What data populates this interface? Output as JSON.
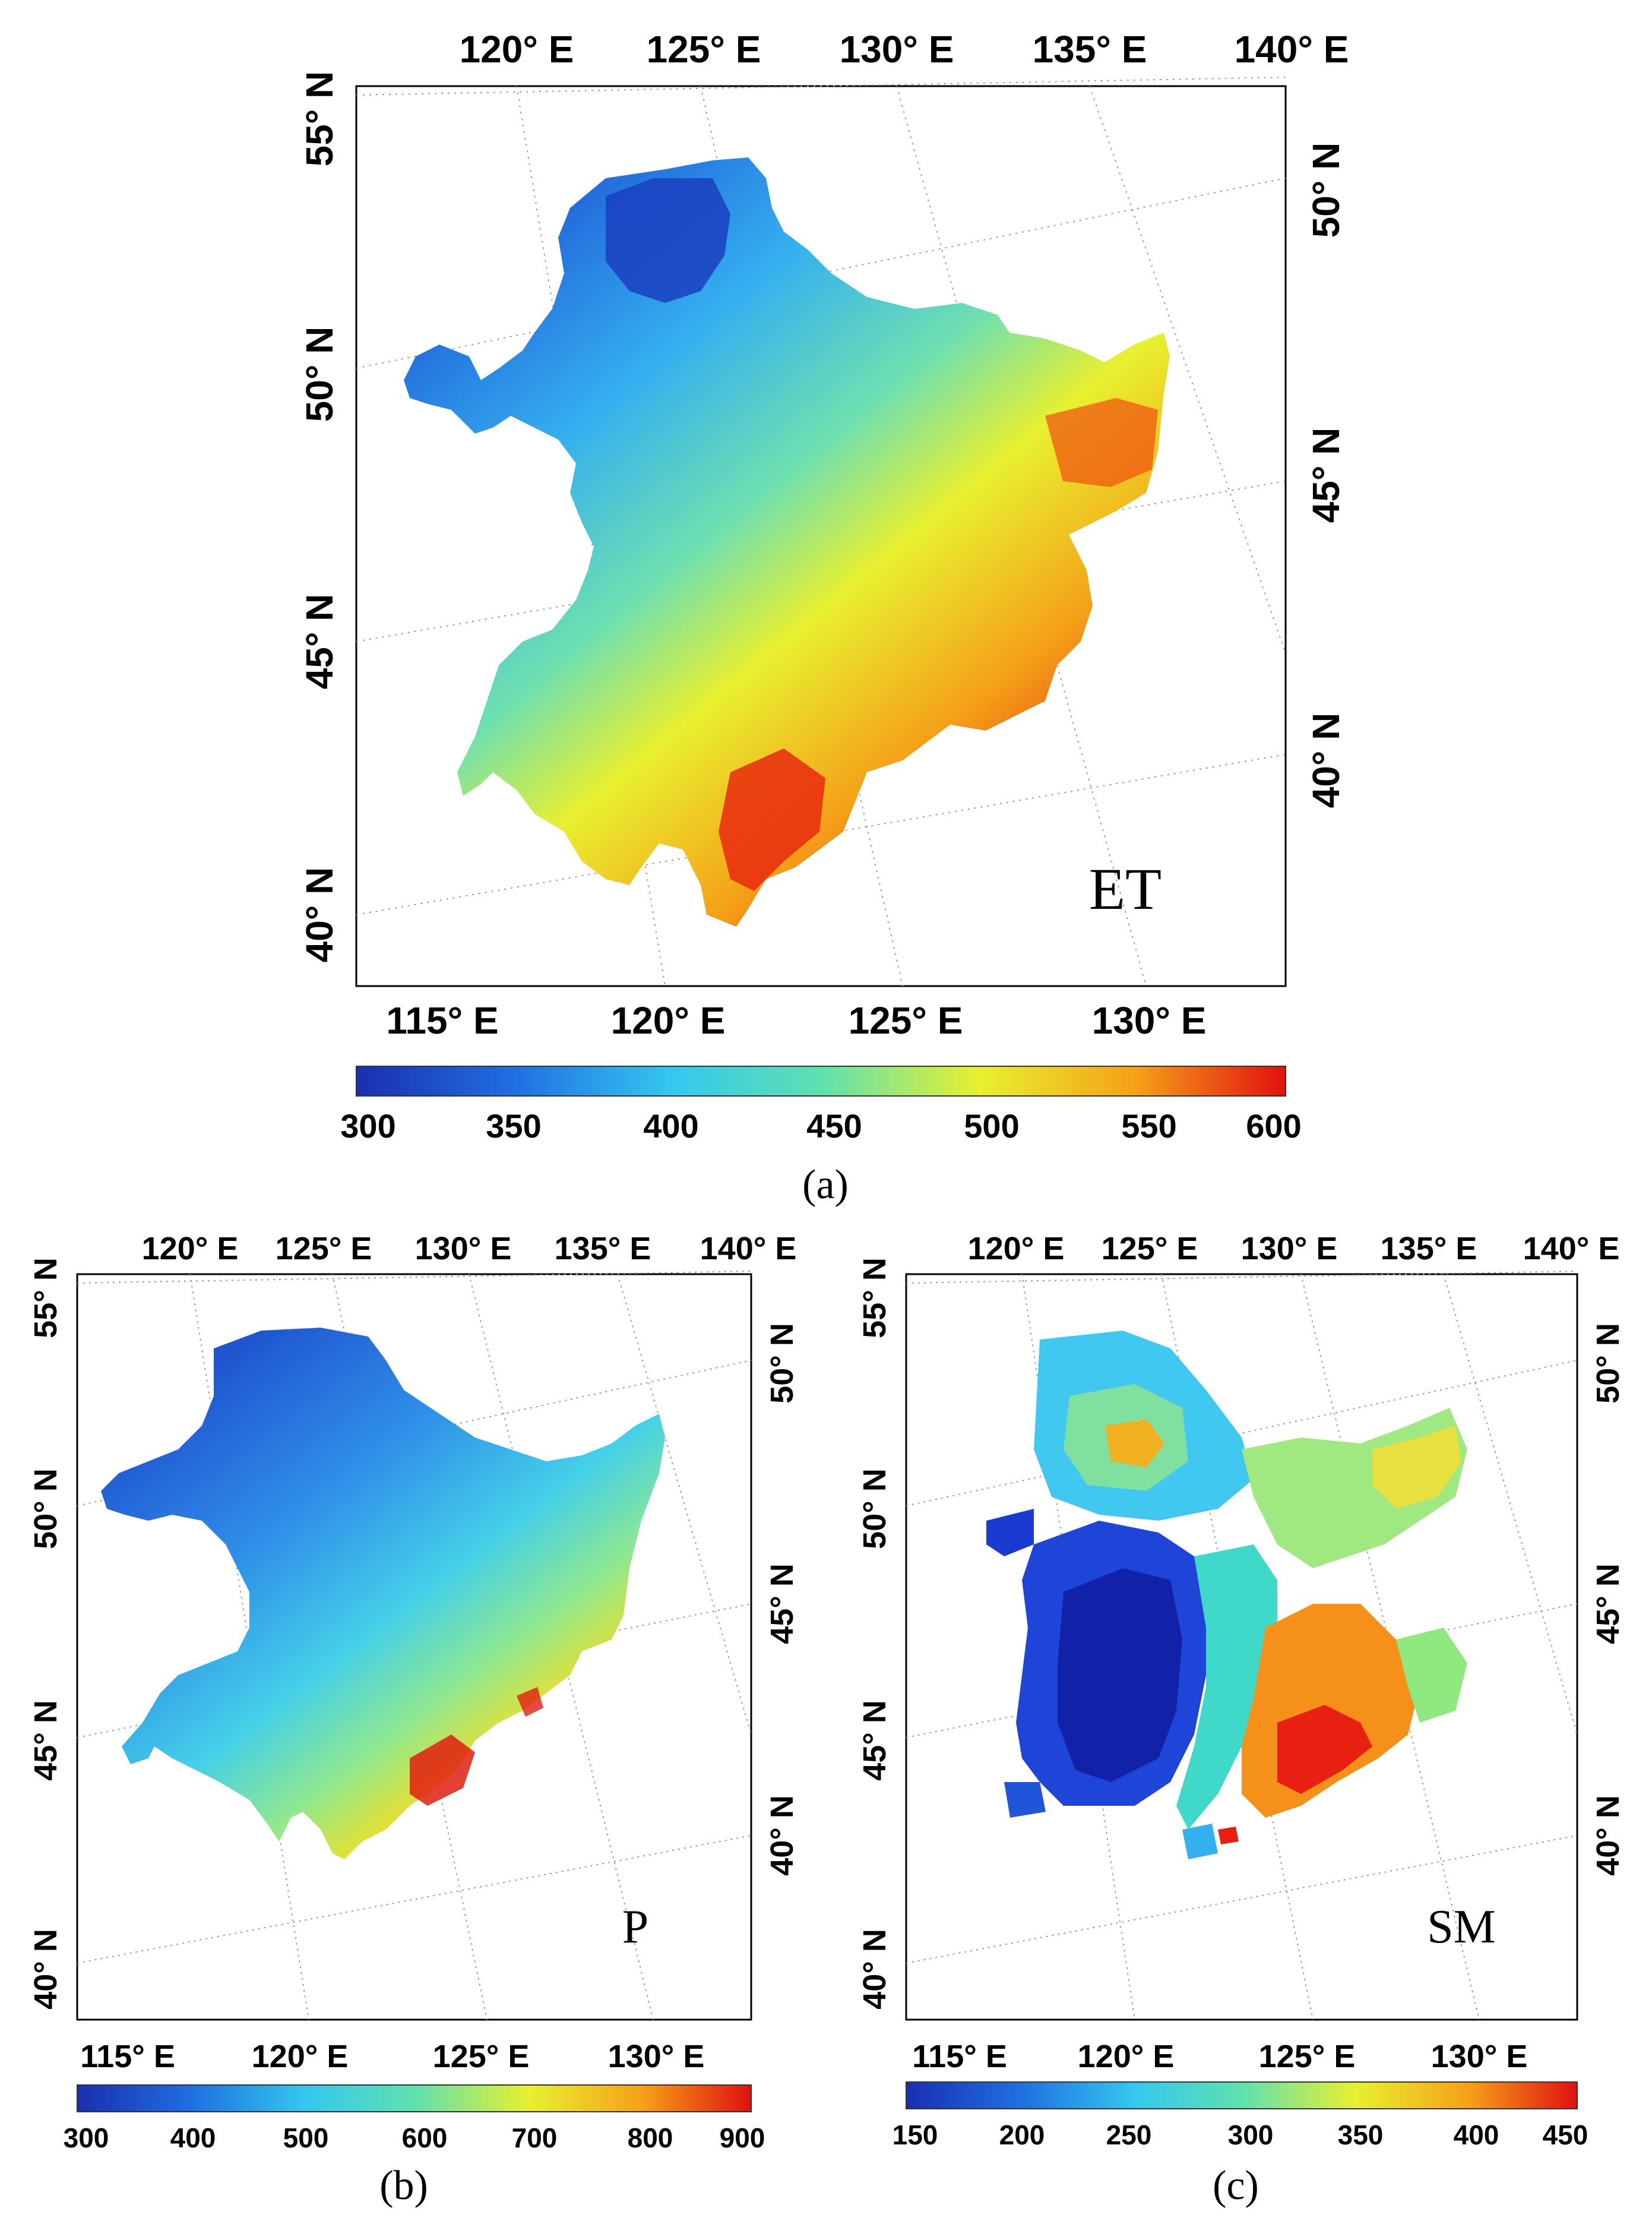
{
  "panels": [
    {
      "id": "a",
      "caption": "(a)",
      "variable": "ET",
      "top_lon_labels": [
        "120° E",
        "125° E",
        "130° E",
        "135° E",
        "140° E"
      ],
      "bottom_lon_labels": [
        "115° E",
        "120° E",
        "125° E",
        "130° E"
      ],
      "left_lat_labels": [
        "55° N",
        "50° N",
        "45° N",
        "40° N"
      ],
      "right_lat_labels": [
        "50° N",
        "45° N",
        "40° N"
      ],
      "colorbar": {
        "min": 300,
        "max": 600,
        "ticks": [
          "300",
          "350",
          "400",
          "450",
          "500",
          "550",
          "600"
        ]
      }
    },
    {
      "id": "b",
      "caption": "(b)",
      "variable": "P",
      "top_lon_labels": [
        "120° E",
        "125° E",
        "130° E",
        "135° E",
        "140° E"
      ],
      "bottom_lon_labels": [
        "115° E",
        "120° E",
        "125° E",
        "130° E"
      ],
      "left_lat_labels": [
        "55° N",
        "50° N",
        "45° N",
        "40° N"
      ],
      "right_lat_labels": [
        "50° N",
        "45° N",
        "40° N"
      ],
      "colorbar": {
        "min": 300,
        "max": 900,
        "ticks": [
          "300",
          "400",
          "500",
          "600",
          "700",
          "800",
          "900"
        ]
      }
    },
    {
      "id": "c",
      "caption": "(c)",
      "variable": "SM",
      "top_lon_labels": [
        "120° E",
        "125° E",
        "130° E",
        "135° E",
        "140° E"
      ],
      "bottom_lon_labels": [
        "115° E",
        "120° E",
        "125° E",
        "130° E"
      ],
      "left_lat_labels": [
        "55° N",
        "50° N",
        "45° N",
        "40° N"
      ],
      "right_lat_labels": [
        "50° N",
        "45° N",
        "40° N"
      ],
      "colorbar": {
        "min": 150,
        "max": 450,
        "ticks": [
          "150",
          "200",
          "250",
          "300",
          "350",
          "400",
          "450"
        ]
      }
    }
  ],
  "colors": {
    "scale": [
      "#1a2fb0",
      "#1f6fe0",
      "#35c8ef",
      "#5fe0b0",
      "#e8f030",
      "#f5a018",
      "#e01010"
    ],
    "frame": "#000000",
    "graticule": "#9a9a9a"
  }
}
